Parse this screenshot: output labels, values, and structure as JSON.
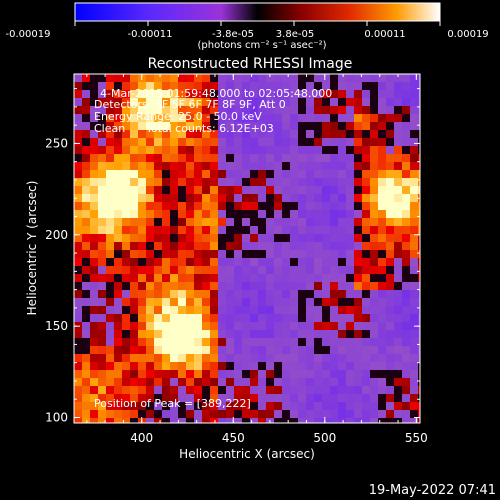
{
  "chart_data": {
    "type": "heatmap",
    "title": "Reconstructed RHESSI Image",
    "xlabel": "Heliocentric X (arcsec)",
    "ylabel": "Heliocentric Y (arcsec)",
    "xlim": [
      363,
      552
    ],
    "ylim": [
      97,
      288
    ],
    "x_ticks": [
      "400",
      "450",
      "500",
      "550"
    ],
    "y_ticks": [
      "100",
      "150",
      "200",
      "250"
    ],
    "colorbar": {
      "range": [
        -0.00019,
        0.00019
      ],
      "tick_labels": [
        "-0.00019",
        "-0.00011",
        "-3.8e-05",
        "3.8e-05",
        "0.00011",
        "0.00019"
      ],
      "unit_label": "(photons cm⁻² s⁻¹ asec⁻²)",
      "colors": [
        "#0000ff",
        "#6a2aff",
        "#9933dd",
        "#000000",
        "#7a0000",
        "#e02000",
        "#ff9900",
        "#ffffff"
      ]
    },
    "annotations": {
      "time_range": "4-Mar-2015 01:59:48.000 to 02:05:48.000",
      "detectors": "Detectors: 3F 5F 6F 7F 8F 9F, Att 0",
      "energy": "Energy Range: 25.0 - 50.0 keV",
      "clean_label": "Clean",
      "total_counts": "Total counts: 6.12E+03",
      "peak": "Position of Peak = [389,222]"
    },
    "bright_sources": [
      {
        "x": 389,
        "y": 222,
        "level": 1.0
      },
      {
        "x": 422,
        "y": 142,
        "level": 0.95
      },
      {
        "x": 400,
        "y": 268,
        "level": 0.55
      },
      {
        "x": 535,
        "y": 220,
        "level": 0.6
      },
      {
        "x": 432,
        "y": 210,
        "level": 0.45
      }
    ]
  },
  "footer": {
    "timestamp": "19-May-2022 07:41"
  }
}
